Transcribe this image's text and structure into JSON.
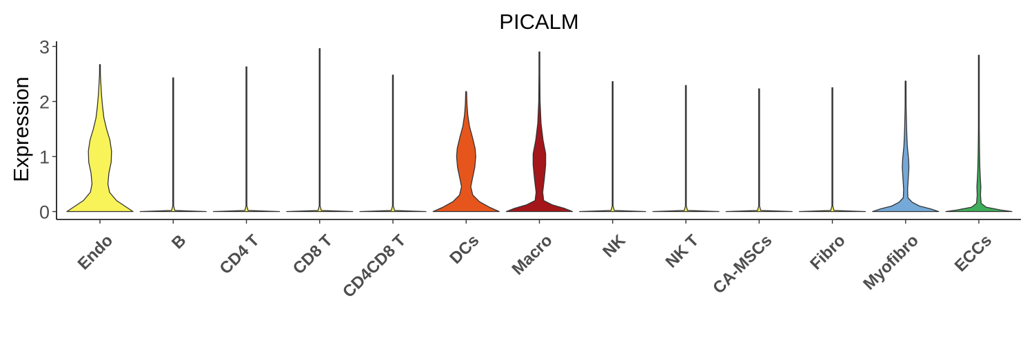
{
  "chart_data": {
    "type": "violin",
    "title": "PICALM",
    "xlabel": "",
    "ylabel": "Expression",
    "ylim": [
      -0.12,
      3.1
    ],
    "yticks": [
      0,
      1,
      2,
      3
    ],
    "grid": false,
    "legend": "none",
    "categories": [
      {
        "name": "Endo",
        "color": "#F9F35A",
        "max": 2.67,
        "density": [
          [
            0,
            1.0
          ],
          [
            0.1,
            0.75
          ],
          [
            0.2,
            0.5
          ],
          [
            0.35,
            0.29
          ],
          [
            0.5,
            0.24
          ],
          [
            0.7,
            0.27
          ],
          [
            0.9,
            0.34
          ],
          [
            1.1,
            0.35
          ],
          [
            1.3,
            0.3
          ],
          [
            1.5,
            0.2
          ],
          [
            1.7,
            0.12
          ],
          [
            1.9,
            0.08
          ],
          [
            2.1,
            0.05
          ],
          [
            2.3,
            0.03
          ],
          [
            2.5,
            0.01
          ],
          [
            2.67,
            0.0
          ]
        ]
      },
      {
        "name": "B",
        "color": "#F9F35A",
        "max": 2.43,
        "density": [
          [
            0,
            1.0
          ],
          [
            0.02,
            0.05
          ],
          [
            0.1,
            0.005
          ],
          [
            2.43,
            0.0
          ]
        ]
      },
      {
        "name": "CD4 T",
        "color": "#F9F35A",
        "max": 2.63,
        "density": [
          [
            0,
            1.0
          ],
          [
            0.02,
            0.05
          ],
          [
            0.1,
            0.005
          ],
          [
            2.63,
            0.0
          ]
        ]
      },
      {
        "name": "CD8 T",
        "color": "#F9F35A",
        "max": 2.96,
        "density": [
          [
            0,
            1.0
          ],
          [
            0.02,
            0.05
          ],
          [
            0.1,
            0.005
          ],
          [
            2.96,
            0.0
          ]
        ]
      },
      {
        "name": "CD4CD8 T",
        "color": "#F9F35A",
        "max": 2.48,
        "density": [
          [
            0,
            1.0
          ],
          [
            0.02,
            0.05
          ],
          [
            0.1,
            0.005
          ],
          [
            2.48,
            0.0
          ]
        ]
      },
      {
        "name": "DCs",
        "color": "#E6561C",
        "max": 2.18,
        "density": [
          [
            0,
            1.0
          ],
          [
            0.08,
            0.7
          ],
          [
            0.18,
            0.4
          ],
          [
            0.3,
            0.2
          ],
          [
            0.45,
            0.14
          ],
          [
            0.6,
            0.19
          ],
          [
            0.8,
            0.26
          ],
          [
            1.0,
            0.29
          ],
          [
            1.15,
            0.27
          ],
          [
            1.35,
            0.19
          ],
          [
            1.55,
            0.1
          ],
          [
            1.75,
            0.05
          ],
          [
            1.95,
            0.025
          ],
          [
            2.18,
            0.0
          ]
        ]
      },
      {
        "name": "Macro",
        "color": "#A4161A",
        "max": 2.9,
        "density": [
          [
            0,
            1.0
          ],
          [
            0.06,
            0.75
          ],
          [
            0.12,
            0.4
          ],
          [
            0.2,
            0.13
          ],
          [
            0.35,
            0.1
          ],
          [
            0.6,
            0.15
          ],
          [
            0.85,
            0.19
          ],
          [
            1.05,
            0.19
          ],
          [
            1.3,
            0.11
          ],
          [
            1.6,
            0.05
          ],
          [
            2.0,
            0.02
          ],
          [
            2.5,
            0.006
          ],
          [
            2.9,
            0.0
          ]
        ]
      },
      {
        "name": "NK",
        "color": "#F9F35A",
        "max": 2.36,
        "density": [
          [
            0,
            1.0
          ],
          [
            0.02,
            0.05
          ],
          [
            0.1,
            0.005
          ],
          [
            2.36,
            0.0
          ]
        ]
      },
      {
        "name": "NK T",
        "color": "#F9F35A",
        "max": 2.29,
        "density": [
          [
            0,
            1.0
          ],
          [
            0.02,
            0.05
          ],
          [
            0.1,
            0.005
          ],
          [
            2.29,
            0.0
          ]
        ]
      },
      {
        "name": "CA-MSCs",
        "color": "#F9F35A",
        "max": 2.23,
        "density": [
          [
            0,
            1.0
          ],
          [
            0.02,
            0.05
          ],
          [
            0.1,
            0.005
          ],
          [
            2.23,
            0.0
          ]
        ]
      },
      {
        "name": "Fibro",
        "color": "#F9F35A",
        "max": 2.25,
        "density": [
          [
            0,
            1.0
          ],
          [
            0.02,
            0.05
          ],
          [
            0.1,
            0.005
          ],
          [
            2.25,
            0.0
          ]
        ]
      },
      {
        "name": "Myofibro",
        "color": "#74A9D8",
        "max": 2.37,
        "density": [
          [
            0,
            1.0
          ],
          [
            0.05,
            0.75
          ],
          [
            0.1,
            0.42
          ],
          [
            0.17,
            0.2
          ],
          [
            0.25,
            0.07
          ],
          [
            0.4,
            0.06
          ],
          [
            0.6,
            0.08
          ],
          [
            0.8,
            0.1
          ],
          [
            0.95,
            0.09
          ],
          [
            1.2,
            0.05
          ],
          [
            1.5,
            0.03
          ],
          [
            1.9,
            0.015
          ],
          [
            2.37,
            0.0
          ]
        ]
      },
      {
        "name": "ECCs",
        "color": "#3FAE5A",
        "max": 2.84,
        "density": [
          [
            0,
            1.0
          ],
          [
            0.03,
            0.65
          ],
          [
            0.08,
            0.22
          ],
          [
            0.15,
            0.07
          ],
          [
            0.3,
            0.05
          ],
          [
            0.45,
            0.06
          ],
          [
            0.6,
            0.045
          ],
          [
            0.8,
            0.03
          ],
          [
            1.1,
            0.02
          ],
          [
            1.5,
            0.01
          ],
          [
            2.0,
            0.005
          ],
          [
            2.84,
            0.0
          ]
        ]
      }
    ]
  }
}
